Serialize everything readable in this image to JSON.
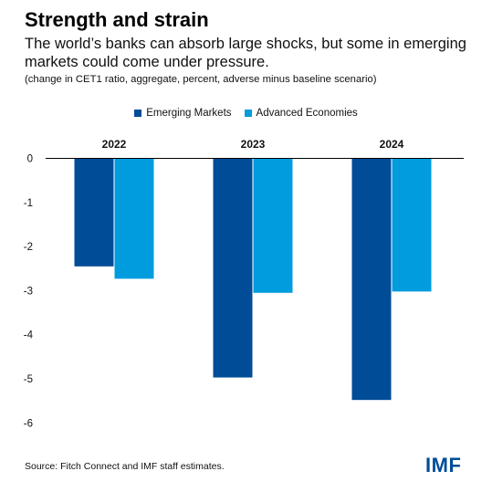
{
  "header": {
    "title": "Strength and strain",
    "subtitle": "The world’s banks can absorb large shocks, but some in emerging markets could come under pressure.",
    "note": "(change in CET1 ratio, aggregate, percent, adverse minus baseline scenario)"
  },
  "footer": {
    "source": "Source: Fitch Connect and IMF staff estimates.",
    "logo": "IMF"
  },
  "colors": {
    "emerging": "#004C97",
    "advanced": "#009CDE"
  },
  "chart_data": {
    "type": "bar",
    "title": "Strength and strain",
    "categories": [
      "2022",
      "2023",
      "2024"
    ],
    "series": [
      {
        "name": "Emerging Markets",
        "values": [
          -2.45,
          -4.97,
          -5.48
        ]
      },
      {
        "name": "Advanced Economies",
        "values": [
          -2.73,
          -3.05,
          -3.02
        ]
      }
    ],
    "yticks": [
      "0",
      "-1",
      "-2",
      "-3",
      "-4",
      "-5",
      "-6"
    ],
    "ylim": [
      -6,
      0
    ],
    "xlabel": "",
    "ylabel": "",
    "legend_position": "top-center",
    "category_labels_position": "top",
    "grid": false
  }
}
